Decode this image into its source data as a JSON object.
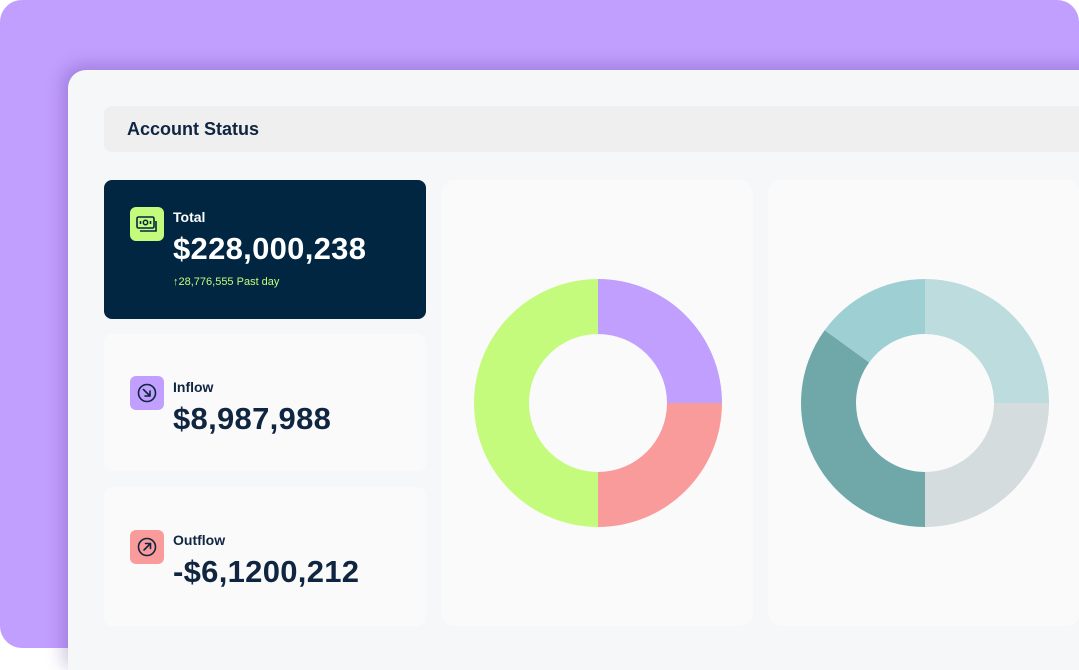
{
  "header": {
    "title": "Account Status"
  },
  "cards": {
    "total": {
      "label": "Total",
      "value": "$228,000,238",
      "change": "↑28,776,555 Past day",
      "icon": "cash-icon",
      "icon_color": "#c5fb7c"
    },
    "inflow": {
      "label": "Inflow",
      "value": "$8,987,988",
      "icon": "arrow-down-right-icon",
      "icon_color": "#c19fff"
    },
    "outflow": {
      "label": "Outflow",
      "value": "-$6,1200,212",
      "icon": "arrow-up-right-icon",
      "icon_color": "#f99b9b"
    }
  },
  "chart_data": [
    {
      "type": "pie",
      "series": [
        {
          "values": [
            25,
            25,
            50
          ],
          "colors": [
            "#c19fff",
            "#f99b9b",
            "#c5fb7c"
          ]
        }
      ]
    },
    {
      "type": "pie",
      "series": [
        {
          "values": [
            25,
            25,
            35,
            15
          ],
          "colors": [
            "#bcdcdd",
            "#d4dcdd",
            "#70a8aa",
            "#9dcfd3"
          ]
        }
      ]
    }
  ],
  "colors": {
    "background": "#c19fff",
    "dark_card": "#012642",
    "text": "#0f2540"
  }
}
